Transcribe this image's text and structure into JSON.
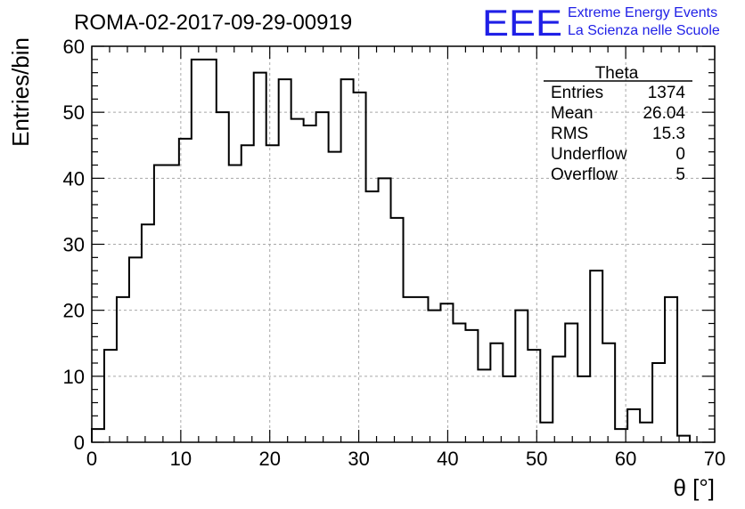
{
  "header": {
    "run_title": "ROMA-02-2017-09-29-00919",
    "logo_text": "EEE",
    "logo_line1": "Extreme Energy Events",
    "logo_line2": "La Scienza nelle Scuole",
    "logo_color": "#1f1fe6"
  },
  "stats": {
    "title": "Theta",
    "rows": [
      {
        "label": "Entries",
        "value": "1374"
      },
      {
        "label": "Mean",
        "value": "26.04"
      },
      {
        "label": "RMS",
        "value": "15.3"
      },
      {
        "label": "Underflow",
        "value": "0"
      },
      {
        "label": "Overflow",
        "value": "5"
      }
    ]
  },
  "chart_data": {
    "type": "bar",
    "title": "ROMA-02-2017-09-29-00919",
    "xlabel": "θ [°]",
    "ylabel": "Entries/bin",
    "xlim": [
      0,
      70
    ],
    "ylim": [
      0,
      60
    ],
    "xticks": [
      "0",
      "10",
      "20",
      "30",
      "40",
      "50",
      "60",
      "70"
    ],
    "yticks": [
      "0",
      "10",
      "20",
      "30",
      "40",
      "50",
      "60"
    ],
    "bin_edges_start": 0,
    "bin_width": 1.4,
    "values": [
      2,
      14,
      22,
      28,
      33,
      42,
      42,
      46,
      58,
      58,
      50,
      42,
      45,
      56,
      45,
      55,
      49,
      48,
      50,
      44,
      55,
      53,
      38,
      40,
      34,
      22,
      22,
      20,
      21,
      18,
      17,
      11,
      15,
      10,
      20,
      14,
      3,
      13,
      18,
      10,
      26,
      15,
      2,
      5,
      3,
      12,
      22,
      1
    ],
    "grid": true,
    "legend_position": "top-right"
  }
}
